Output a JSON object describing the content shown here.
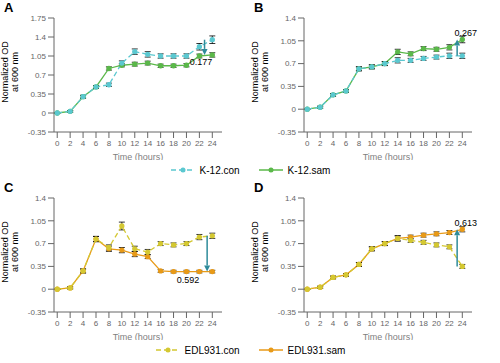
{
  "chart_data": [
    {
      "type": "line",
      "title": "A",
      "x_label": "Time (hours)",
      "y_label": "Normalized OD\nat 600 nm",
      "x": [
        0,
        2,
        4,
        6,
        8,
        10,
        12,
        14,
        16,
        18,
        20,
        22,
        24
      ],
      "xlim": [
        -0.5,
        25.5
      ],
      "xticks": [
        0,
        2,
        4,
        6,
        8,
        10,
        12,
        14,
        16,
        18,
        20,
        22,
        24
      ],
      "ylim": [
        -0.35,
        1.75
      ],
      "yticks": [
        -0.35,
        0,
        0.35,
        0.7,
        1.05,
        1.4,
        1.75
      ],
      "grid": false,
      "series": [
        {
          "name": "K-12.con",
          "color": "#5BC8D0",
          "line_style": "dashed",
          "marker": "circle",
          "values": [
            0.0,
            0.03,
            0.3,
            0.48,
            0.52,
            0.92,
            1.13,
            1.08,
            1.05,
            1.05,
            1.05,
            1.22,
            1.35
          ],
          "error": [
            0.005,
            0.015,
            0.025,
            0.025,
            0.03,
            0.04,
            0.05,
            0.05,
            0.04,
            0.04,
            0.04,
            0.06,
            0.07
          ]
        },
        {
          "name": "K-12.sam",
          "color": "#5BB84A",
          "line_style": "solid",
          "marker": "circle",
          "values": [
            0.0,
            0.03,
            0.3,
            0.48,
            0.82,
            0.88,
            0.9,
            0.92,
            0.87,
            0.87,
            0.88,
            1.05,
            1.07
          ],
          "error": [
            0.005,
            0.015,
            0.025,
            0.025,
            0.03,
            0.03,
            0.035,
            0.035,
            0.03,
            0.03,
            0.03,
            0.035,
            0.04
          ]
        }
      ],
      "annotations": [
        {
          "text": "0.177",
          "x": 20.5,
          "y": 0.88,
          "arrow": {
            "x": 22.8,
            "from": 1.35,
            "to": 1.07,
            "color": "#2E8B9A"
          }
        }
      ]
    },
    {
      "type": "line",
      "title": "B",
      "x_label": "Time (hours)",
      "y_label": "Normalized OD\nat 600 nm",
      "x": [
        0,
        2,
        4,
        6,
        8,
        10,
        12,
        14,
        16,
        18,
        20,
        22,
        24
      ],
      "xlim": [
        -0.5,
        25.5
      ],
      "xticks": [
        0,
        2,
        4,
        6,
        8,
        10,
        12,
        14,
        16,
        18,
        20,
        22,
        24
      ],
      "ylim": [
        -0.35,
        1.4
      ],
      "yticks": [
        -0.35,
        0,
        0.35,
        0.7,
        1.05,
        1.4
      ],
      "grid": false,
      "series": [
        {
          "name": "K-12.con",
          "color": "#5BC8D0",
          "line_style": "dashed",
          "marker": "circle",
          "values": [
            0.0,
            0.03,
            0.22,
            0.28,
            0.62,
            0.65,
            0.7,
            0.75,
            0.75,
            0.78,
            0.8,
            0.82,
            0.82
          ],
          "error": [
            0.005,
            0.015,
            0.02,
            0.02,
            0.03,
            0.03,
            0.03,
            0.04,
            0.03,
            0.03,
            0.03,
            0.04,
            0.04
          ]
        },
        {
          "name": "K-12.sam",
          "color": "#5BB84A",
          "line_style": "solid",
          "marker": "circle",
          "values": [
            0.0,
            0.03,
            0.22,
            0.28,
            0.62,
            0.65,
            0.7,
            0.88,
            0.85,
            0.93,
            0.92,
            0.95,
            1.07
          ],
          "error": [
            0.005,
            0.015,
            0.02,
            0.02,
            0.03,
            0.03,
            0.03,
            0.04,
            0.03,
            0.03,
            0.03,
            0.04,
            0.05
          ]
        }
      ],
      "annotations": [
        {
          "text": "0.267",
          "x": 22.8,
          "y": 1.12,
          "arrow": {
            "x": 23.2,
            "from": 0.82,
            "to": 1.07,
            "color": "#2E8B9A"
          }
        }
      ]
    },
    {
      "type": "line",
      "title": "C",
      "x_label": "Time (hours)",
      "y_label": "Normalized OD\nat 600 nm",
      "x": [
        0,
        2,
        4,
        6,
        8,
        10,
        12,
        14,
        16,
        18,
        20,
        22,
        24
      ],
      "xlim": [
        -0.5,
        25.5
      ],
      "xticks": [
        0,
        2,
        4,
        6,
        8,
        10,
        12,
        14,
        16,
        18,
        20,
        22,
        24
      ],
      "ylim": [
        -0.35,
        1.4
      ],
      "yticks": [
        -0.35,
        0,
        0.35,
        0.7,
        1.05,
        1.4
      ],
      "grid": false,
      "series": [
        {
          "name": "EDL931.con",
          "color": "#D4C832",
          "line_style": "dashed",
          "marker": "circle",
          "values": [
            0.0,
            0.02,
            0.28,
            0.77,
            0.64,
            0.97,
            0.62,
            0.57,
            0.7,
            0.68,
            0.7,
            0.8,
            0.82
          ],
          "error": [
            0.005,
            0.015,
            0.03,
            0.04,
            0.04,
            0.06,
            0.04,
            0.04,
            0.03,
            0.03,
            0.03,
            0.04,
            0.04
          ]
        },
        {
          "name": "EDL931.sam",
          "color": "#E89A18",
          "line_style": "solid",
          "marker": "circle",
          "values": [
            0.0,
            0.02,
            0.28,
            0.77,
            0.62,
            0.6,
            0.54,
            0.5,
            0.28,
            0.27,
            0.27,
            0.27,
            0.27
          ],
          "error": [
            0.005,
            0.015,
            0.03,
            0.04,
            0.04,
            0.04,
            0.04,
            0.03,
            0.02,
            0.02,
            0.02,
            0.02,
            0.02
          ]
        }
      ],
      "annotations": [
        {
          "text": "0.592",
          "x": 18.5,
          "y": 0.1,
          "arrow": {
            "x": 23.2,
            "from": 0.82,
            "to": 0.27,
            "color": "#2E8B9A"
          }
        }
      ]
    },
    {
      "type": "line",
      "title": "D",
      "x_label": "Time (hours)",
      "y_label": "Normalized OD\nat 600 nm",
      "x": [
        0,
        2,
        4,
        6,
        8,
        10,
        12,
        14,
        16,
        18,
        20,
        22,
        24
      ],
      "xlim": [
        -0.5,
        25.5
      ],
      "xticks": [
        0,
        2,
        4,
        6,
        8,
        10,
        12,
        14,
        16,
        18,
        20,
        22,
        24
      ],
      "ylim": [
        -0.35,
        1.4
      ],
      "yticks": [
        -0.35,
        0,
        0.35,
        0.7,
        1.05,
        1.4
      ],
      "grid": false,
      "series": [
        {
          "name": "EDL931.con",
          "color": "#D4C832",
          "line_style": "dashed",
          "marker": "circle",
          "values": [
            0.0,
            0.03,
            0.18,
            0.22,
            0.38,
            0.62,
            0.7,
            0.78,
            0.75,
            0.72,
            0.68,
            0.65,
            0.35
          ],
          "error": [
            0.005,
            0.015,
            0.02,
            0.02,
            0.03,
            0.03,
            0.03,
            0.04,
            0.03,
            0.03,
            0.03,
            0.03,
            0.03
          ]
        },
        {
          "name": "EDL931.sam",
          "color": "#E89A18",
          "line_style": "solid",
          "marker": "circle",
          "values": [
            0.0,
            0.03,
            0.18,
            0.22,
            0.38,
            0.62,
            0.7,
            0.78,
            0.8,
            0.83,
            0.85,
            0.87,
            0.92
          ],
          "error": [
            0.005,
            0.015,
            0.02,
            0.02,
            0.03,
            0.03,
            0.03,
            0.04,
            0.03,
            0.03,
            0.03,
            0.03,
            0.04
          ]
        }
      ],
      "annotations": [
        {
          "text": "0.613",
          "x": 22.8,
          "y": 0.97,
          "arrow": {
            "x": 23.2,
            "from": 0.35,
            "to": 0.92,
            "color": "#2E8B9A"
          }
        }
      ]
    }
  ]
}
